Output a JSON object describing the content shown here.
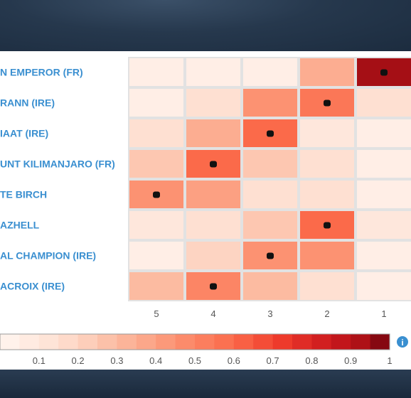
{
  "chart_data": {
    "type": "heatmap",
    "rows": [
      "...N EMPEROR (FR)",
      "...RANN (IRE)",
      "...IAAT (IRE)",
      "...UNT KILIMANJARO (FR)",
      "...TE BIRCH",
      "...AZHELL",
      "...AL CHAMPION (IRE)",
      "...ACROIX (IRE)"
    ],
    "row_labels_visible": [
      "N EMPEROR (FR)",
      "RANN (IRE)",
      "IAAT (IRE)",
      "UNT KILIMANJARO (FR)",
      "TE BIRCH",
      "AZHELL",
      "AL CHAMPION (IRE)",
      "ACROIX (IRE)"
    ],
    "columns": [
      "5",
      "4",
      "3",
      "2",
      "1"
    ],
    "values": [
      [
        0.05,
        0.05,
        0.05,
        0.35,
        0.95
      ],
      [
        0.05,
        0.15,
        0.45,
        0.55,
        0.15
      ],
      [
        0.15,
        0.35,
        0.6,
        0.1,
        0.05
      ],
      [
        0.25,
        0.6,
        0.25,
        0.15,
        0.05
      ],
      [
        0.45,
        0.4,
        0.15,
        0.15,
        0.05
      ],
      [
        0.1,
        0.15,
        0.25,
        0.6,
        0.1
      ],
      [
        0.05,
        0.2,
        0.45,
        0.45,
        0.05
      ],
      [
        0.3,
        0.5,
        0.3,
        0.15,
        0.05
      ]
    ],
    "marked": [
      4,
      3,
      2,
      1,
      0,
      3,
      2,
      1
    ],
    "colorbar_ticks": [
      "0.1",
      "0.2",
      "0.3",
      "0.4",
      "0.5",
      "0.6",
      "0.7",
      "0.8",
      "0.9",
      "1"
    ],
    "color_min": 0,
    "color_max": 1,
    "colors": {
      "low": "#fff5f0",
      "high": "#67000d",
      "label": "#3a8fd0",
      "dot": "#111111",
      "info": "#3a8fd0"
    },
    "info_icon": "info-icon"
  }
}
